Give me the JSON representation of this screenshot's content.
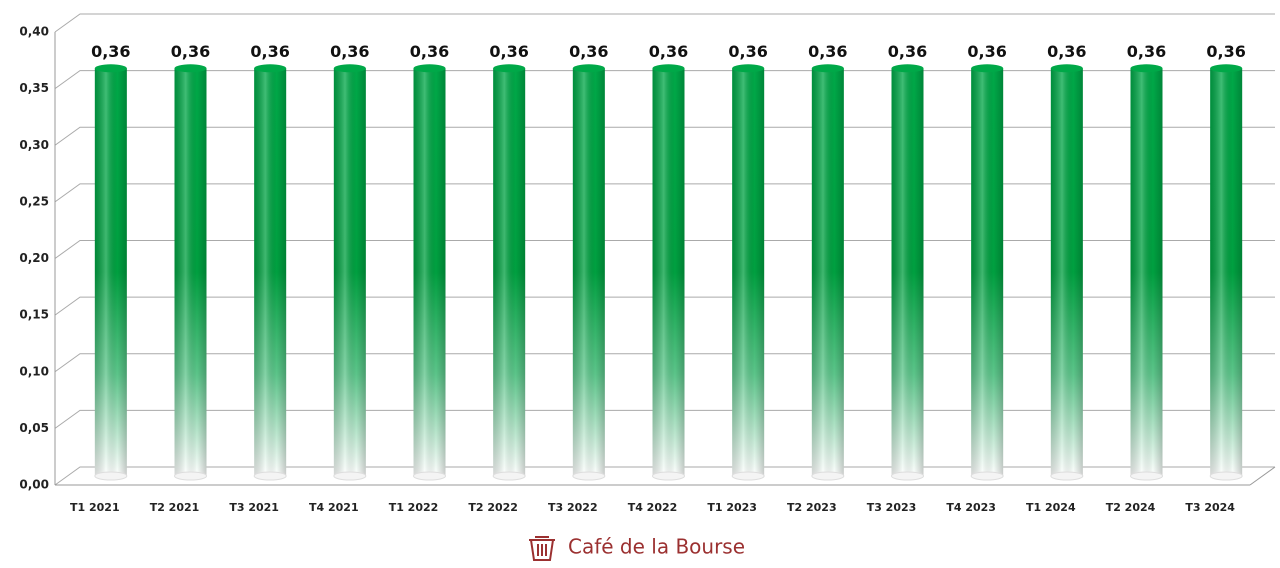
{
  "chart_data": {
    "type": "bar",
    "categories": [
      "T1 2021",
      "T2 2021",
      "T3 2021",
      "T4 2021",
      "T1 2022",
      "T2 2022",
      "T3 2022",
      "T4 2022",
      "T1 2023",
      "T2 2023",
      "T3 2023",
      "T4 2023",
      "T1 2024",
      "T2 2024",
      "T3 2024"
    ],
    "values": [
      0.36,
      0.36,
      0.36,
      0.36,
      0.36,
      0.36,
      0.36,
      0.36,
      0.36,
      0.36,
      0.36,
      0.36,
      0.36,
      0.36,
      0.36
    ],
    "value_labels": [
      "0,36",
      "0,36",
      "0,36",
      "0,36",
      "0,36",
      "0,36",
      "0,36",
      "0,36",
      "0,36",
      "0,36",
      "0,36",
      "0,36",
      "0,36",
      "0,36",
      "0,36"
    ],
    "color": "#00a848",
    "ylim": [
      0,
      0.4
    ],
    "yticks": [
      {
        "value": 0,
        "label": "0,00"
      },
      {
        "value": 0.05,
        "label": "0,05"
      },
      {
        "value": 0.1,
        "label": "0,10"
      },
      {
        "value": 0.15,
        "label": "0,15"
      },
      {
        "value": 0.2,
        "label": "0,20"
      },
      {
        "value": 0.25,
        "label": "0,25"
      },
      {
        "value": 0.3,
        "label": "0,30"
      },
      {
        "value": 0.35,
        "label": "0,35"
      },
      {
        "value": 0.4,
        "label": "0,40"
      }
    ],
    "grid": true,
    "source": "Café de la Bourse"
  }
}
